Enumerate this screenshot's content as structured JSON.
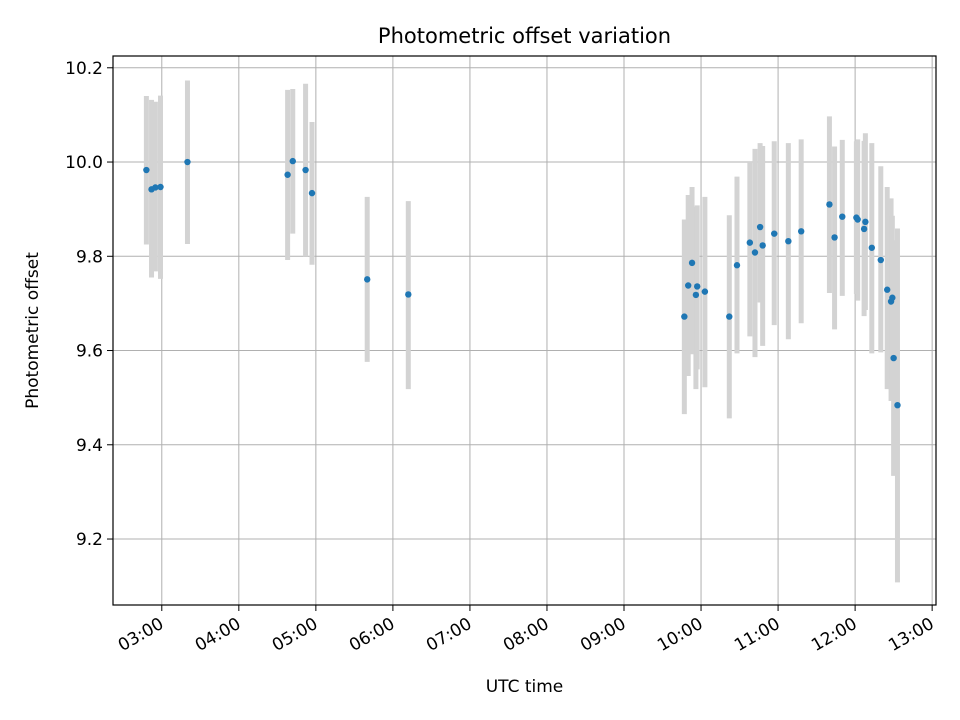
{
  "chart_data": {
    "type": "scatter",
    "title": "Photometric offset variation",
    "xlabel": "UTC time",
    "ylabel": "Photometric offset",
    "x_ticks": [
      "03:00",
      "04:00",
      "05:00",
      "06:00",
      "07:00",
      "08:00",
      "09:00",
      "10:00",
      "11:00",
      "12:00",
      "13:00"
    ],
    "y_ticks": [
      "9.2",
      "9.4",
      "9.6",
      "9.8",
      "10.0",
      "10.2"
    ],
    "xlim": [
      "02:22",
      "13:03"
    ],
    "ylim": [
      9.06,
      10.225
    ],
    "grid": true,
    "colors": {
      "marker": "#1f77b4",
      "errorbar": "#d3d3d3",
      "grid": "#b0b0b0"
    },
    "points": [
      {
        "t": "02:48",
        "y": 9.983,
        "lo": 9.825,
        "hi": 10.14
      },
      {
        "t": "02:52",
        "y": 9.942,
        "lo": 9.755,
        "hi": 10.132
      },
      {
        "t": "02:55",
        "y": 9.946,
        "lo": 9.768,
        "hi": 10.128
      },
      {
        "t": "02:59",
        "y": 9.947,
        "lo": 9.752,
        "hi": 10.141
      },
      {
        "t": "03:20",
        "y": 10.0,
        "lo": 9.826,
        "hi": 10.173
      },
      {
        "t": "04:38",
        "y": 9.973,
        "lo": 9.792,
        "hi": 10.153
      },
      {
        "t": "04:42",
        "y": 10.002,
        "lo": 9.848,
        "hi": 10.155
      },
      {
        "t": "04:52",
        "y": 9.983,
        "lo": 9.8,
        "hi": 10.166
      },
      {
        "t": "04:57",
        "y": 9.934,
        "lo": 9.782,
        "hi": 10.085
      },
      {
        "t": "05:40",
        "y": 9.751,
        "lo": 9.576,
        "hi": 9.926
      },
      {
        "t": "06:12",
        "y": 9.719,
        "lo": 9.518,
        "hi": 9.917
      },
      {
        "t": "09:47",
        "y": 9.672,
        "lo": 9.465,
        "hi": 9.878
      },
      {
        "t": "09:50",
        "y": 9.738,
        "lo": 9.546,
        "hi": 9.93
      },
      {
        "t": "09:53",
        "y": 9.786,
        "lo": 9.592,
        "hi": 9.947
      },
      {
        "t": "09:56",
        "y": 9.718,
        "lo": 9.518,
        "hi": 9.905
      },
      {
        "t": "09:57",
        "y": 9.736,
        "lo": 9.56,
        "hi": 9.908
      },
      {
        "t": "10:03",
        "y": 9.725,
        "lo": 9.522,
        "hi": 9.926
      },
      {
        "t": "10:22",
        "y": 9.672,
        "lo": 9.456,
        "hi": 9.887
      },
      {
        "t": "10:28",
        "y": 9.781,
        "lo": 9.594,
        "hi": 9.969
      },
      {
        "t": "10:38",
        "y": 9.829,
        "lo": 9.63,
        "hi": 10.0
      },
      {
        "t": "10:42",
        "y": 9.808,
        "lo": 9.586,
        "hi": 10.028
      },
      {
        "t": "10:46",
        "y": 9.862,
        "lo": 9.702,
        "hi": 10.04
      },
      {
        "t": "10:48",
        "y": 9.823,
        "lo": 9.61,
        "hi": 10.034
      },
      {
        "t": "10:57",
        "y": 9.848,
        "lo": 9.654,
        "hi": 10.044
      },
      {
        "t": "11:08",
        "y": 9.832,
        "lo": 9.624,
        "hi": 10.04
      },
      {
        "t": "11:18",
        "y": 9.853,
        "lo": 9.658,
        "hi": 10.048
      },
      {
        "t": "11:40",
        "y": 9.91,
        "lo": 9.722,
        "hi": 10.097
      },
      {
        "t": "11:44",
        "y": 9.84,
        "lo": 9.645,
        "hi": 10.033
      },
      {
        "t": "11:50",
        "y": 9.884,
        "lo": 9.716,
        "hi": 10.047
      },
      {
        "t": "12:01",
        "y": 9.882,
        "lo": 9.72,
        "hi": 10.044
      },
      {
        "t": "12:02",
        "y": 9.878,
        "lo": 9.706,
        "hi": 10.048
      },
      {
        "t": "12:07",
        "y": 9.858,
        "lo": 9.673,
        "hi": 10.045
      },
      {
        "t": "12:08",
        "y": 9.873,
        "lo": 9.686,
        "hi": 10.061
      },
      {
        "t": "12:13",
        "y": 9.818,
        "lo": 9.594,
        "hi": 10.04
      },
      {
        "t": "12:20",
        "y": 9.792,
        "lo": 9.596,
        "hi": 9.991
      },
      {
        "t": "12:25",
        "y": 9.729,
        "lo": 9.518,
        "hi": 9.947
      },
      {
        "t": "12:28",
        "y": 9.704,
        "lo": 9.493,
        "hi": 9.923
      },
      {
        "t": "12:29",
        "y": 9.712,
        "lo": 9.54,
        "hi": 9.886
      },
      {
        "t": "12:30",
        "y": 9.584,
        "lo": 9.334,
        "hi": 9.834
      },
      {
        "t": "12:33",
        "y": 9.484,
        "lo": 9.108,
        "hi": 9.859
      }
    ]
  }
}
